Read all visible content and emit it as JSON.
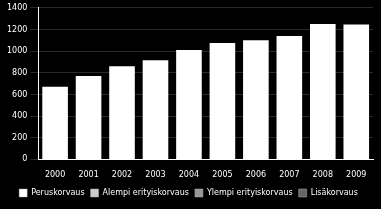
{
  "chart_data": {
    "type": "bar",
    "categories": [
      "2000",
      "2001",
      "2002",
      "2003",
      "2004",
      "2005",
      "2006",
      "2007",
      "2008",
      "2009"
    ],
    "values": [
      670,
      770,
      860,
      915,
      1010,
      1075,
      1100,
      1140,
      1250,
      1245
    ],
    "color": "#ffffff",
    "ylim": [
      0,
      1400
    ],
    "yticks": [
      0,
      200,
      400,
      600,
      800,
      1000,
      1200,
      1400
    ],
    "grid": true,
    "legend": "bottom",
    "legend_entries": [
      {
        "name": "Peruskorvaus",
        "color": "#ffffff"
      },
      {
        "name": "Alempi erityiskorvaus",
        "color": "#cccccc"
      },
      {
        "name": "Ylempi erityiskorvaus",
        "color": "#999999"
      },
      {
        "name": "Lisäkorvaus",
        "color": "#666666"
      }
    ],
    "background_color": "#000000",
    "text_color": "#ffffff",
    "grid_color": "#555555"
  }
}
